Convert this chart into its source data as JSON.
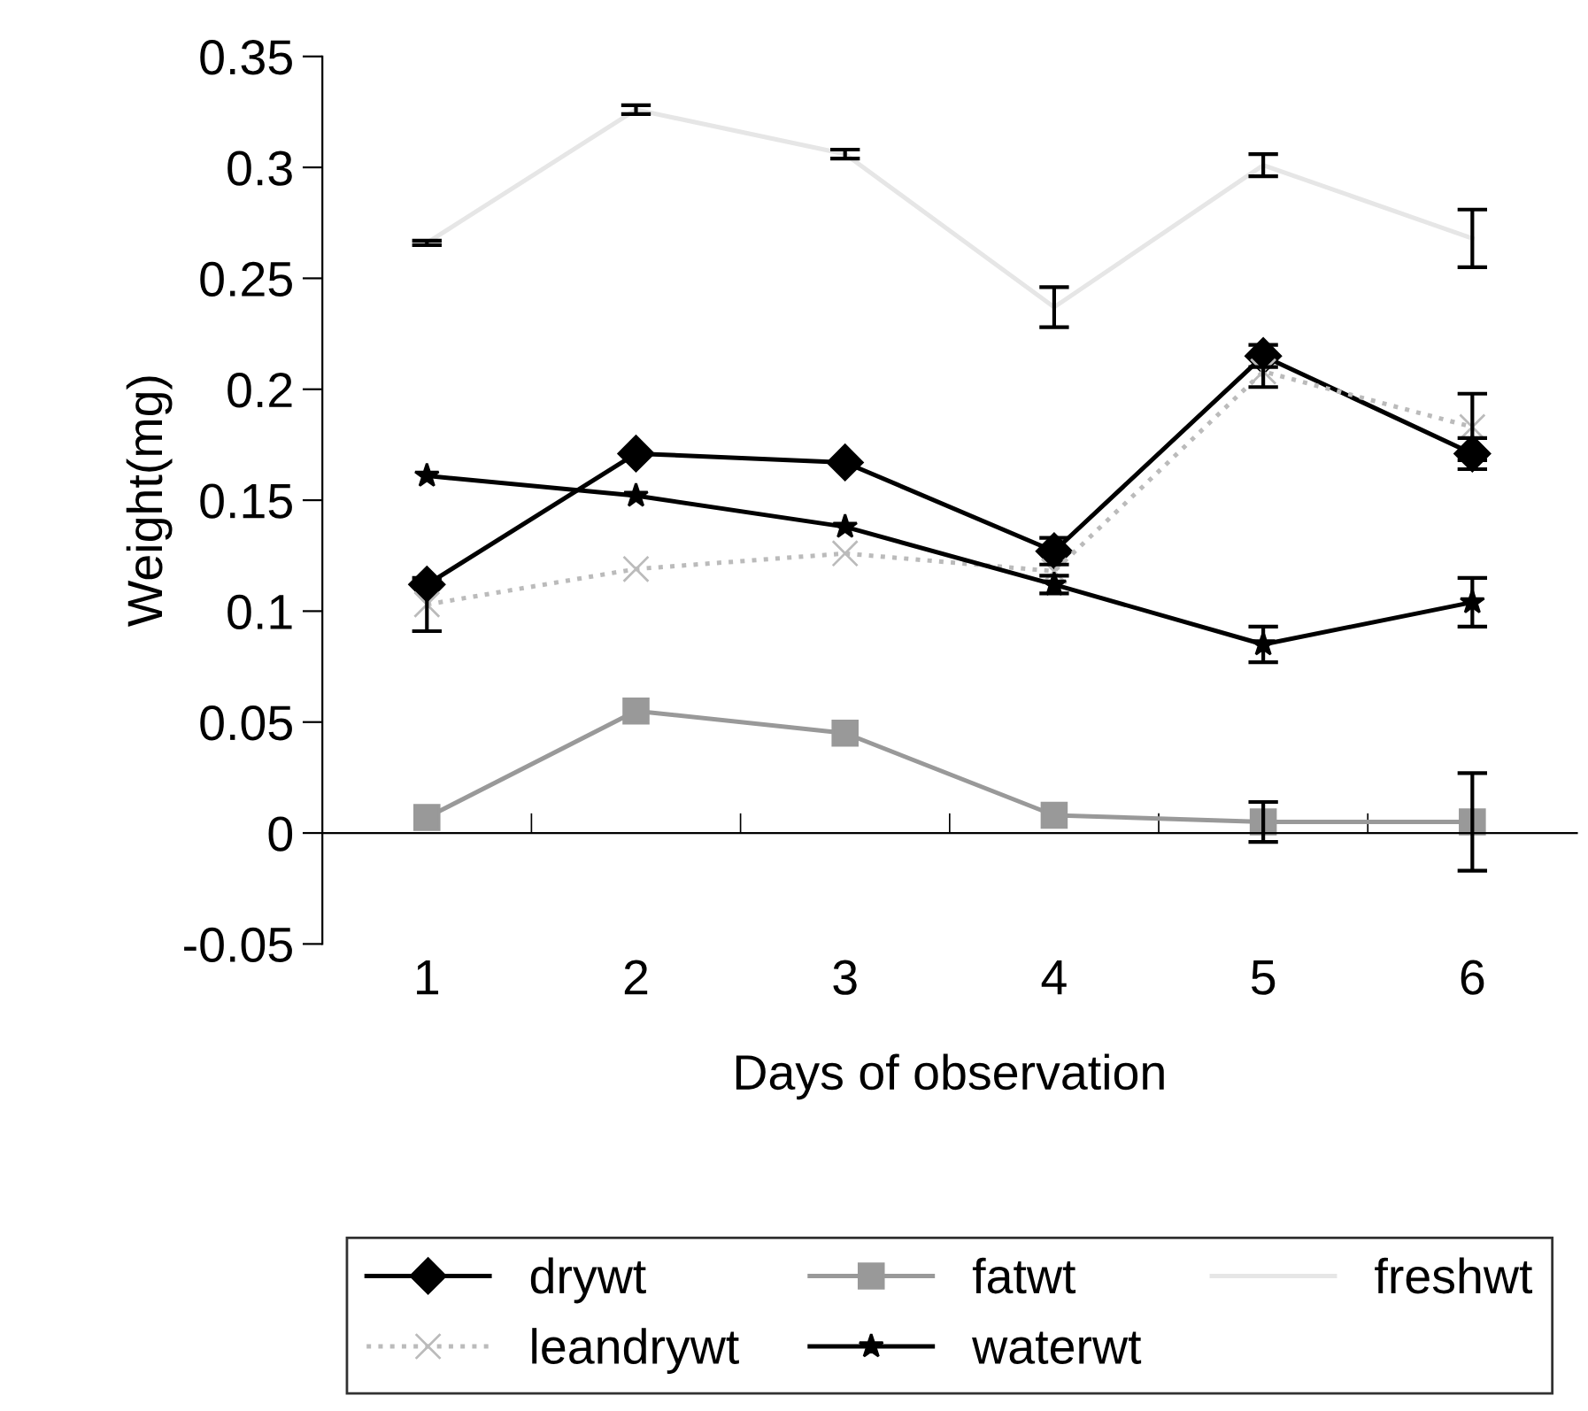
{
  "chart_data": {
    "type": "line",
    "xlabel": "Days of observation",
    "ylabel": "Weight(mg)",
    "categories": [
      "1",
      "2",
      "3",
      "4",
      "5",
      "6"
    ],
    "ylim": [
      -0.05,
      0.35
    ],
    "yticks": [
      -0.05,
      0,
      0.05,
      0.1,
      0.15,
      0.2,
      0.25,
      0.3,
      0.35
    ],
    "grid": false,
    "legend": "bottom",
    "series": [
      {
        "name": "drywt",
        "color": "#000000",
        "marker": "diamond",
        "line_style": "solid",
        "values": [
          0.112,
          0.171,
          0.167,
          0.127,
          0.215,
          0.171
        ],
        "errors": [
          null,
          null,
          null,
          0.006,
          0.005,
          0.007
        ]
      },
      {
        "name": "fatwt",
        "color": "#999999",
        "marker": "square",
        "line_style": "solid",
        "values": [
          0.007,
          0.055,
          0.045,
          0.008,
          0.005,
          0.005
        ],
        "errors": [
          null,
          null,
          null,
          null,
          0.009,
          0.022
        ]
      },
      {
        "name": "freshwt",
        "color": "#e6e6e6",
        "marker": "none",
        "line_style": "solid",
        "values": [
          0.266,
          0.326,
          0.306,
          0.237,
          0.301,
          0.268
        ],
        "errors": [
          0.001,
          0.002,
          0.002,
          0.009,
          0.005,
          0.013
        ]
      },
      {
        "name": "leandrywt",
        "color": "#bbbbbb",
        "marker": "cross",
        "line_style": "dotted",
        "values": [
          0.103,
          0.119,
          0.126,
          0.118,
          0.208,
          0.183
        ],
        "errors": [
          0.012,
          null,
          null,
          null,
          0.007,
          0.015
        ]
      },
      {
        "name": "waterwt",
        "color": "#000000",
        "marker": "star",
        "line_style": "solid",
        "values": [
          0.161,
          0.152,
          0.138,
          0.112,
          0.085,
          0.104
        ],
        "errors": [
          null,
          null,
          null,
          0.004,
          0.008,
          0.011
        ]
      }
    ]
  }
}
